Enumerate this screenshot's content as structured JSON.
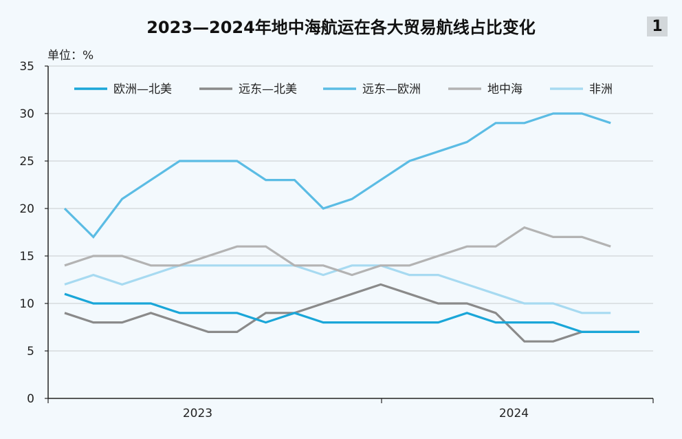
{
  "title": "2023—2024年地中海航运在各大贸易航线占比变化",
  "figure_number": "1",
  "unit_label": "单位：%",
  "chart_data": {
    "type": "line",
    "title": "2023—2024年地中海航运在各大贸易航线占比变化",
    "ylabel": "单位：%",
    "ylim": [
      0,
      35
    ],
    "yticks": [
      0,
      5,
      10,
      15,
      20,
      25,
      30,
      35
    ],
    "x_groups": [
      "2023",
      "2024"
    ],
    "grid": true,
    "legend_position": "top",
    "x": [
      1,
      2,
      3,
      4,
      5,
      6,
      7,
      8,
      9,
      10,
      11,
      12,
      13,
      14,
      15,
      16,
      17,
      18,
      19,
      20,
      21
    ],
    "series": [
      {
        "name": "欧洲—北美",
        "color": "#1aa6d8",
        "values": [
          11,
          10,
          10,
          10,
          9,
          9,
          9,
          8,
          9,
          8,
          8,
          8,
          8,
          8,
          9,
          8,
          8,
          8,
          7,
          7,
          7
        ]
      },
      {
        "name": "远东—北美",
        "color": "#8a8a8a",
        "values": [
          9,
          8,
          8,
          9,
          8,
          7,
          7,
          9,
          9,
          10,
          11,
          12,
          11,
          10,
          10,
          9,
          6,
          6,
          7,
          7,
          7
        ]
      },
      {
        "name": "远东—欧洲",
        "color": "#5bbce4",
        "values": [
          20,
          17,
          21,
          23,
          25,
          25,
          25,
          23,
          23,
          20,
          21,
          23,
          25,
          26,
          27,
          29,
          29,
          30,
          30,
          29,
          null
        ]
      },
      {
        "name": "地中海",
        "color": "#b3b3b3",
        "values": [
          14,
          15,
          15,
          14,
          14,
          15,
          16,
          16,
          14,
          14,
          13,
          14,
          14,
          15,
          16,
          16,
          18,
          17,
          17,
          16,
          null
        ]
      },
      {
        "name": "非洲",
        "color": "#a7daf1",
        "values": [
          12,
          13,
          12,
          13,
          14,
          14,
          14,
          14,
          14,
          13,
          14,
          14,
          13,
          13,
          12,
          11,
          10,
          10,
          9,
          9,
          null
        ]
      }
    ]
  }
}
